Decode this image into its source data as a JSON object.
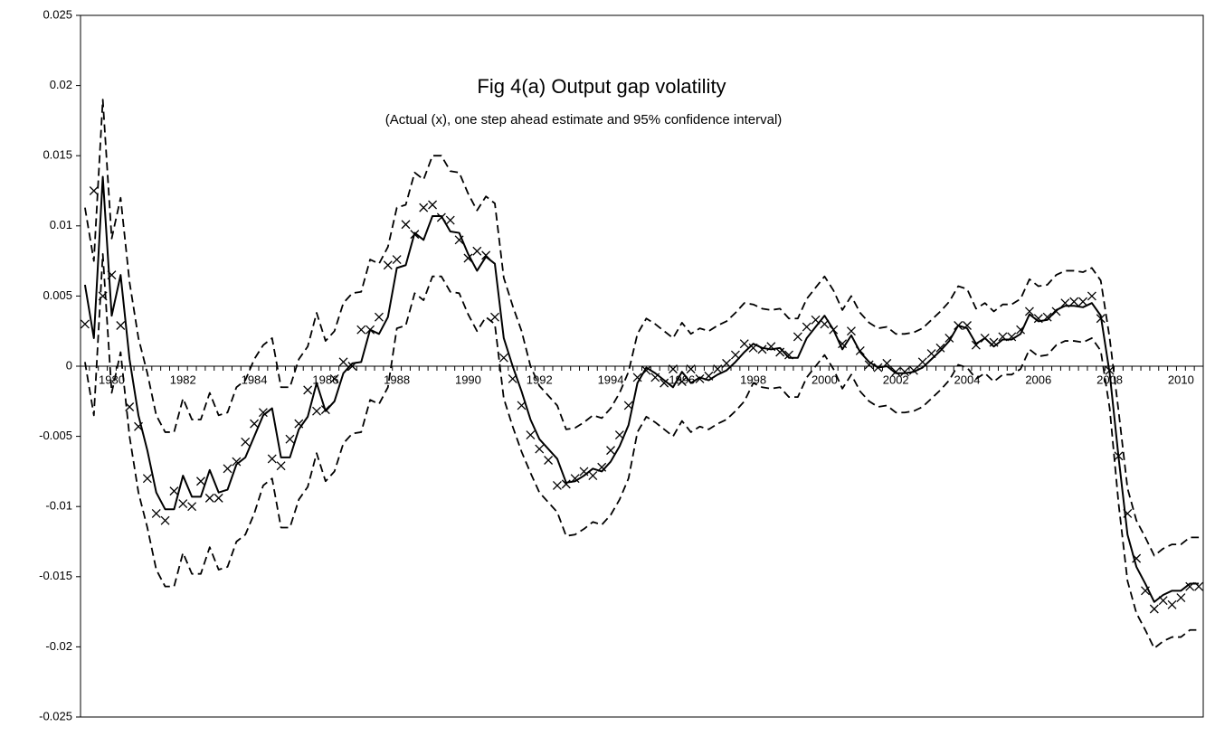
{
  "chart_data": {
    "type": "line",
    "title": "Fig 4(a) Output gap volatility",
    "subtitle": "(Actual (x), one step ahead estimate and 95% confidence interval)",
    "categories": [
      null,
      null,
      null,
      "1980",
      null,
      null,
      null,
      null,
      null,
      null,
      null,
      "1982",
      null,
      null,
      null,
      null,
      null,
      null,
      null,
      "1984",
      null,
      null,
      null,
      null,
      null,
      null,
      null,
      "1986",
      null,
      null,
      null,
      null,
      null,
      null,
      null,
      "1988",
      null,
      null,
      null,
      null,
      null,
      null,
      null,
      "1990",
      null,
      null,
      null,
      null,
      null,
      null,
      null,
      "1992",
      null,
      null,
      null,
      null,
      null,
      null,
      null,
      "1994",
      null,
      null,
      null,
      null,
      null,
      null,
      null,
      "1996",
      null,
      null,
      null,
      null,
      null,
      null,
      null,
      "1998",
      null,
      null,
      null,
      null,
      null,
      null,
      null,
      "2000",
      null,
      null,
      null,
      null,
      null,
      null,
      null,
      "2002",
      null,
      null,
      null,
      null,
      null,
      null,
      null,
      "2004",
      null,
      null,
      null,
      null,
      null,
      null,
      null,
      "2006",
      null,
      null,
      null,
      null,
      null,
      null,
      null,
      "2008",
      null,
      null,
      null,
      null,
      null,
      null,
      null,
      "2010",
      null,
      null
    ],
    "ylim": [
      -0.025,
      0.025
    ],
    "yticks": [
      -0.025,
      -0.02,
      -0.015,
      -0.01,
      -0.005,
      0,
      0.005,
      0.01,
      0.015,
      0.02,
      0.025
    ],
    "grid": false,
    "series": [
      {
        "color": "#000000",
        "style": "markers",
        "values": [
          0.003,
          0.0125,
          0.005,
          0.0065,
          0.0029,
          -0.0029,
          -0.0043,
          -0.008,
          -0.0105,
          -0.011,
          -0.0089,
          -0.0098,
          -0.01,
          -0.0082,
          -0.0094,
          -0.0094,
          -0.0073,
          -0.0068,
          -0.0054,
          -0.0041,
          -0.0033,
          -0.0066,
          -0.0071,
          -0.0052,
          -0.0041,
          -0.0017,
          -0.0032,
          -0.0031,
          -0.0009,
          0.0003,
          0,
          0.0026,
          0.0026,
          0.0035,
          0.0072,
          0.0076,
          0.0101,
          0.0094,
          0.0113,
          0.0115,
          0.0106,
          0.0104,
          0.009,
          0.0077,
          0.0082,
          0.0079,
          0.0035,
          0.0006,
          -0.0009,
          -0.0028,
          -0.0049,
          -0.0059,
          -0.0067,
          -0.0085,
          -0.0084,
          -0.008,
          -0.0075,
          -0.0078,
          -0.0072,
          -0.006,
          -0.0049,
          -0.0028,
          -0.0008,
          -0.0003,
          -0.0008,
          -0.0012,
          -0.0002,
          -0.0011,
          -0.0002,
          -0.0009,
          -0.0007,
          -0.0002,
          0.0002,
          0.0008,
          0.0016,
          0.0013,
          0.0012,
          0.0014,
          0.001,
          0.0008,
          0.0021,
          0.0028,
          0.0033,
          0.003,
          0.0026,
          0.0016,
          0.0025,
          0.0011,
          0.0001,
          -0.0001,
          0.0002,
          -0.0004,
          -0.0004,
          -0.0003,
          0.0003,
          0.0009,
          0.0013,
          0.002,
          0.0029,
          0.0029,
          0.0015,
          0.002,
          0.0017,
          0.0021,
          0.0021,
          0.0026,
          0.0039,
          0.0034,
          0.0035,
          0.0039,
          0.0045,
          0.0046,
          0.0046,
          0.005,
          0.0034,
          -0.0003,
          -0.0064,
          -0.0105,
          -0.0137,
          -0.016,
          -0.0173,
          -0.0167,
          -0.017,
          -0.0165,
          -0.0157,
          -0.0157
        ]
      },
      {
        "color": "#000000",
        "style": "solid",
        "values": [
          0.0058,
          0.002,
          0.0135,
          0.0036,
          0.0065,
          0.0005,
          -0.0035,
          -0.006,
          -0.009,
          -0.0102,
          -0.0102,
          -0.0078,
          -0.0093,
          -0.0093,
          -0.0074,
          -0.009,
          -0.0088,
          -0.007,
          -0.0065,
          -0.005,
          -0.0035,
          -0.003,
          -0.0065,
          -0.0065,
          -0.0045,
          -0.0036,
          -0.0012,
          -0.0032,
          -0.0025,
          -0.0005,
          0.0002,
          0.0003,
          0.0026,
          0.0023,
          0.0035,
          0.007,
          0.0072,
          0.0095,
          0.009,
          0.0107,
          0.0107,
          0.0096,
          0.0095,
          0.008,
          0.0068,
          0.0078,
          0.0073,
          0.002,
          0,
          -0.0018,
          -0.0038,
          -0.0052,
          -0.0059,
          -0.0066,
          -0.0083,
          -0.0082,
          -0.0078,
          -0.0073,
          -0.0075,
          -0.0068,
          -0.0057,
          -0.0042,
          -0.0012,
          -0.0001,
          -0.0005,
          -0.001,
          -0.0015,
          -0.0004,
          -0.0012,
          -0.0008,
          -0.001,
          -0.0006,
          -0.0003,
          0.0003,
          0.001,
          0.0016,
          0.0013,
          0.0012,
          0.0013,
          0.0006,
          0.0006,
          0.002,
          0.0028,
          0.0036,
          0.0026,
          0.0012,
          0.0022,
          0.001,
          0.0003,
          -0.0001,
          0,
          -0.0005,
          -0.0005,
          -0.0004,
          -0.0001,
          0.0005,
          0.0011,
          0.0018,
          0.0029,
          0.0027,
          0.0016,
          0.002,
          0.0014,
          0.0019,
          0.0019,
          0.0023,
          0.0037,
          0.0032,
          0.0033,
          0.004,
          0.0043,
          0.0043,
          0.0042,
          0.0045,
          0.0036,
          -0.0005,
          -0.0065,
          -0.012,
          -0.0143,
          -0.0155,
          -0.0168,
          -0.0163,
          -0.016,
          -0.016,
          -0.0155,
          -0.0155
        ]
      },
      {
        "color": "#000000",
        "style": "dashed",
        "values": [
          0.0113,
          0.0075,
          0.019,
          0.0091,
          0.012,
          0.006,
          0.002,
          -0.0005,
          -0.0035,
          -0.0047,
          -0.0047,
          -0.0023,
          -0.0038,
          -0.0038,
          -0.0019,
          -0.0035,
          -0.0033,
          -0.0015,
          -0.001,
          0.0005,
          0.0015,
          0.002,
          -0.0015,
          -0.0015,
          0.0005,
          0.0014,
          0.0038,
          0.0018,
          0.0025,
          0.0045,
          0.0052,
          0.0053,
          0.0076,
          0.0073,
          0.0085,
          0.0113,
          0.0115,
          0.0138,
          0.0133,
          0.015,
          0.015,
          0.0139,
          0.0138,
          0.0123,
          0.0111,
          0.0121,
          0.0116,
          0.0063,
          0.0043,
          0.0025,
          0,
          -0.0014,
          -0.0021,
          -0.0028,
          -0.0045,
          -0.0044,
          -0.004,
          -0.0035,
          -0.0037,
          -0.003,
          -0.0019,
          -0.0004,
          0.0023,
          0.0034,
          0.003,
          0.0025,
          0.002,
          0.0031,
          0.0023,
          0.0027,
          0.0025,
          0.0029,
          0.0032,
          0.0038,
          0.0045,
          0.0044,
          0.0041,
          0.004,
          0.0041,
          0.0034,
          0.0034,
          0.0048,
          0.0056,
          0.0064,
          0.0054,
          0.004,
          0.005,
          0.0038,
          0.0031,
          0.0027,
          0.0028,
          0.0023,
          0.0023,
          0.0024,
          0.0027,
          0.0033,
          0.0039,
          0.0046,
          0.0057,
          0.0055,
          0.0041,
          0.0045,
          0.0039,
          0.0044,
          0.0044,
          0.0048,
          0.0062,
          0.0057,
          0.0058,
          0.0065,
          0.0068,
          0.0068,
          0.0067,
          0.007,
          0.0061,
          0.002,
          -0.0032,
          -0.0087,
          -0.011,
          -0.0122,
          -0.0135,
          -0.013,
          -0.0127,
          -0.0127,
          -0.0122,
          -0.0122
        ]
      },
      {
        "color": "#000000",
        "style": "dashed",
        "values": [
          0.0003,
          -0.0035,
          0.008,
          -0.0019,
          0.001,
          -0.005,
          -0.009,
          -0.0115,
          -0.0145,
          -0.0157,
          -0.0157,
          -0.0133,
          -0.0148,
          -0.0148,
          -0.0129,
          -0.0145,
          -0.0143,
          -0.0125,
          -0.012,
          -0.0105,
          -0.0085,
          -0.008,
          -0.0115,
          -0.0115,
          -0.0095,
          -0.0086,
          -0.0062,
          -0.0082,
          -0.0075,
          -0.0055,
          -0.0048,
          -0.0047,
          -0.0024,
          -0.0027,
          -0.0015,
          0.0027,
          0.0029,
          0.0052,
          0.0047,
          0.0064,
          0.0064,
          0.0053,
          0.0052,
          0.0037,
          0.0025,
          0.0035,
          0.003,
          -0.0023,
          -0.0043,
          -0.0061,
          -0.0076,
          -0.009,
          -0.0097,
          -0.0104,
          -0.0121,
          -0.012,
          -0.0116,
          -0.0111,
          -0.0113,
          -0.0106,
          -0.0095,
          -0.008,
          -0.0047,
          -0.0036,
          -0.004,
          -0.0045,
          -0.005,
          -0.0039,
          -0.0047,
          -0.0043,
          -0.0045,
          -0.0041,
          -0.0038,
          -0.0032,
          -0.0025,
          -0.0012,
          -0.0015,
          -0.0016,
          -0.0015,
          -0.0022,
          -0.0022,
          -0.0008,
          0,
          0.0008,
          -0.0002,
          -0.0016,
          -0.0006,
          -0.0018,
          -0.0025,
          -0.0029,
          -0.0028,
          -0.0033,
          -0.0033,
          -0.0032,
          -0.0029,
          -0.0023,
          -0.0017,
          -0.001,
          0.0001,
          -0.0001,
          -0.0009,
          -0.0005,
          -0.0011,
          -0.0006,
          -0.0006,
          -0.0002,
          0.0012,
          0.0007,
          0.0008,
          0.0015,
          0.0018,
          0.0018,
          0.0017,
          0.002,
          0.0011,
          -0.003,
          -0.0098,
          -0.0153,
          -0.0176,
          -0.0188,
          -0.0201,
          -0.0196,
          -0.0193,
          -0.0193,
          -0.0188,
          -0.0188
        ]
      }
    ]
  }
}
